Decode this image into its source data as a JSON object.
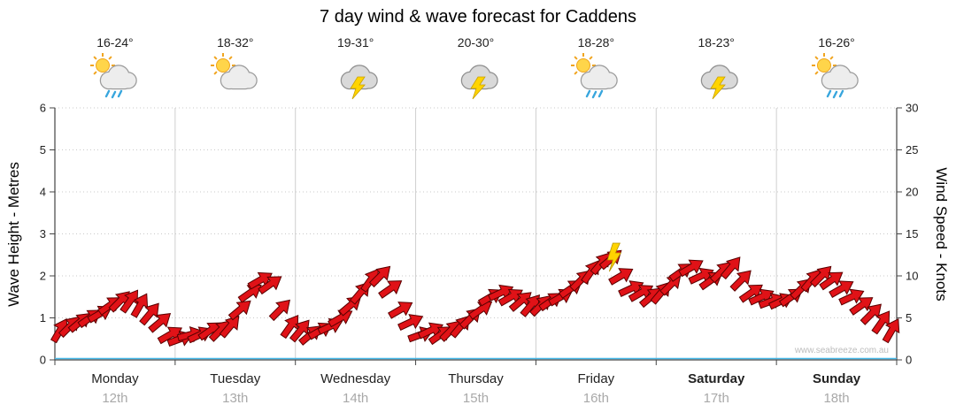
{
  "title": "7 day wind & wave forecast for Caddens",
  "watermark": "www.seabreeze.com.au",
  "days": [
    {
      "name": "Monday",
      "date": "12th",
      "temp": "16-24°",
      "icon": "sun-cloud-rain",
      "bold": false
    },
    {
      "name": "Tuesday",
      "date": "13th",
      "temp": "18-32°",
      "icon": "sun-cloud",
      "bold": false
    },
    {
      "name": "Wednesday",
      "date": "14th",
      "temp": "19-31°",
      "icon": "cloud-lightning",
      "bold": false
    },
    {
      "name": "Thursday",
      "date": "15th",
      "temp": "20-30°",
      "icon": "cloud-lightning",
      "bold": false
    },
    {
      "name": "Friday",
      "date": "16th",
      "temp": "18-28°",
      "icon": "sun-cloud-rain",
      "bold": false
    },
    {
      "name": "Saturday",
      "date": "17th",
      "temp": "18-23°",
      "icon": "cloud-lightning",
      "bold": true
    },
    {
      "name": "Sunday",
      "date": "18th",
      "temp": "16-26°",
      "icon": "sun-cloud-rain",
      "bold": true
    }
  ],
  "colors": {
    "arrow": "#e01217",
    "arrow_outline": "#5a0000",
    "grid": "#c9c9c9",
    "day_grid": "#cfcfcf",
    "axis": "#444444",
    "zero_line": "#45b8e8",
    "bolt": "#ffd400",
    "tick_text": "#222222",
    "date_text": "#a9a9a9",
    "watermark": "#bdbdbd"
  },
  "chart_data": {
    "type": "line",
    "subtype": "wind-arrow-series",
    "title": "7 day wind & wave forecast for Caddens",
    "x_days": [
      "Monday",
      "Tuesday",
      "Wednesday",
      "Thursday",
      "Friday",
      "Saturday",
      "Sunday"
    ],
    "left_axis": {
      "label": "Wave Height - Metres",
      "range": [
        0,
        6
      ],
      "ticks": [
        0,
        1,
        2,
        3,
        4,
        5,
        6
      ]
    },
    "right_axis": {
      "label": "Wind Speed - Knots",
      "range": [
        0,
        30
      ],
      "ticks": [
        0,
        5,
        10,
        15,
        20,
        25,
        30
      ]
    },
    "grid": true,
    "wind_speed_knots": [
      3.5,
      4,
      4.5,
      5,
      5.5,
      6.5,
      7,
      7,
      6.5,
      5.5,
      4.5,
      3,
      2.5,
      3,
      3,
      3.5,
      3.5,
      4,
      6,
      8,
      9.5,
      9,
      6,
      4,
      3.5,
      3,
      3.5,
      4,
      5,
      6.5,
      8,
      9.5,
      10,
      8.5,
      6,
      4.5,
      3,
      3.5,
      3,
      3.5,
      4,
      5,
      6,
      7.5,
      8,
      7.5,
      7,
      6.5,
      6.5,
      7,
      7.5,
      8.5,
      9.5,
      10.5,
      11.5,
      12,
      10,
      8.5,
      8,
      7.5,
      8,
      9,
      10.5,
      11,
      10,
      9.5,
      10.5,
      11,
      9.5,
      8,
      7.5,
      7,
      7,
      7.5,
      8.5,
      9.5,
      10,
      9.5,
      8.5,
      7.5,
      6.5,
      5.5,
      4.5,
      3.5
    ],
    "wind_dir_deg": [
      -60,
      -45,
      -40,
      -35,
      -30,
      -35,
      -45,
      -55,
      -60,
      -50,
      -40,
      -30,
      -20,
      -15,
      -25,
      -35,
      -45,
      -50,
      -40,
      -35,
      -30,
      -35,
      -45,
      -55,
      -50,
      -40,
      -30,
      -25,
      -30,
      -40,
      -50,
      -55,
      -45,
      -35,
      -30,
      -25,
      -20,
      -25,
      -35,
      -45,
      -50,
      -45,
      -35,
      -30,
      -25,
      -30,
      -40,
      -50,
      -45,
      -35,
      -30,
      -35,
      -45,
      -55,
      -50,
      -40,
      -30,
      -25,
      -30,
      -40,
      -50,
      -45,
      -35,
      -30,
      -25,
      -35,
      -45,
      -50,
      -45,
      -35,
      -25,
      -20,
      -25,
      -35,
      -45,
      -50,
      -45,
      -35,
      -30,
      -25,
      -35,
      -45,
      -55,
      -60
    ],
    "storm_marker": {
      "day": "Friday",
      "knots": 12
    }
  }
}
